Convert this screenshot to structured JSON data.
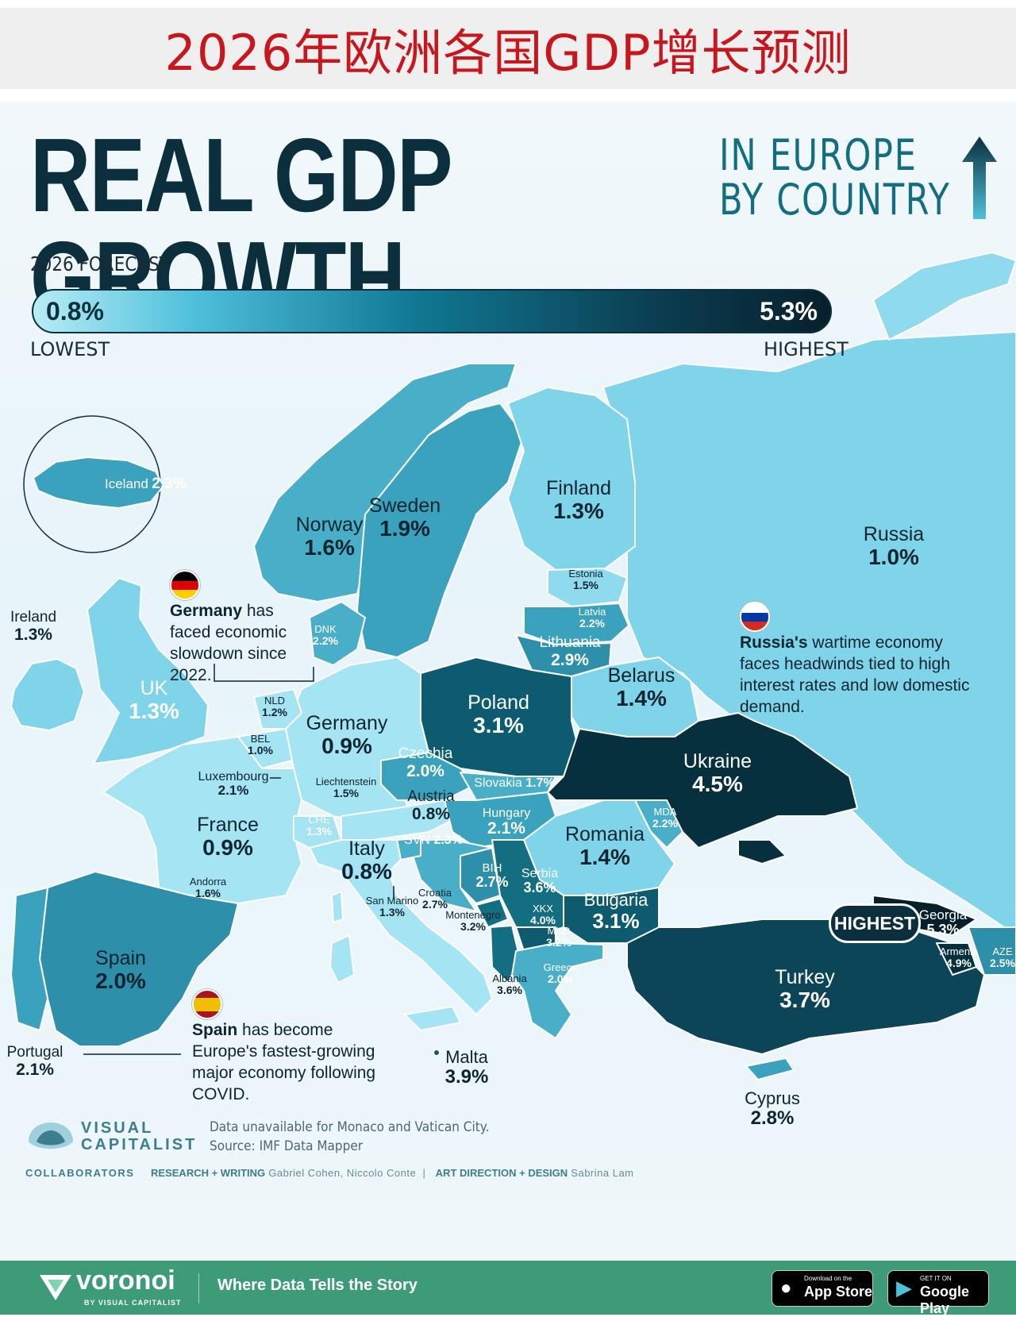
{
  "banner": {
    "title": "2026年欧洲各国GDP增长预测"
  },
  "header": {
    "title": "REAL GDP GROWTH",
    "subtitle_line1": "IN EUROPE",
    "subtitle_line2": "BY COUNTRY"
  },
  "legend": {
    "heading": "2026 FORECAST",
    "low_value": "0.8%",
    "high_value": "5.3%",
    "low_label": "LOWEST",
    "high_label": "HIGHEST",
    "color_low": "#b7ecf6",
    "color_high": "#06202b"
  },
  "countries": {
    "iceland": {
      "name": "Iceland",
      "value": "2.3%"
    },
    "ireland": {
      "name": "Ireland",
      "value": "1.3%"
    },
    "uk": {
      "name": "UK",
      "value": "1.3%"
    },
    "norway": {
      "name": "Norway",
      "value": "1.6%"
    },
    "sweden": {
      "name": "Sweden",
      "value": "1.9%"
    },
    "finland": {
      "name": "Finland",
      "value": "1.3%"
    },
    "russia": {
      "name": "Russia",
      "value": "1.0%"
    },
    "estonia": {
      "name": "Estonia",
      "value": "1.5%"
    },
    "latvia": {
      "name": "Latvia",
      "value": "2.2%"
    },
    "lithuania": {
      "name": "Lithuania",
      "value": "2.9%"
    },
    "denmark": {
      "name": "DNK",
      "value": "2.2%"
    },
    "netherlands": {
      "name": "NLD",
      "value": "1.2%"
    },
    "belgium": {
      "name": "BEL",
      "value": "1.0%"
    },
    "luxembourg": {
      "name": "Luxembourg",
      "value": "2.1%"
    },
    "liechtenstein": {
      "name": "Liechtenstein",
      "value": "1.5%"
    },
    "switzerland": {
      "name": "CHE",
      "value": "1.3%"
    },
    "germany": {
      "name": "Germany",
      "value": "0.9%"
    },
    "poland": {
      "name": "Poland",
      "value": "3.1%"
    },
    "belarus": {
      "name": "Belarus",
      "value": "1.4%"
    },
    "ukraine": {
      "name": "Ukraine",
      "value": "4.5%"
    },
    "czechia": {
      "name": "Czechia",
      "value": "2.0%"
    },
    "slovakia": {
      "name": "Slovakia",
      "value": "1.7%"
    },
    "austria": {
      "name": "Austria",
      "value": "0.8%"
    },
    "hungary": {
      "name": "Hungary",
      "value": "2.1%"
    },
    "moldova": {
      "name": "MDA",
      "value": "2.2%"
    },
    "romania": {
      "name": "Romania",
      "value": "1.4%"
    },
    "france": {
      "name": "France",
      "value": "0.9%"
    },
    "slovenia": {
      "name": "SVN",
      "value": "2.3%"
    },
    "italy": {
      "name": "Italy",
      "value": "0.8%"
    },
    "andorra": {
      "name": "Andorra",
      "value": "1.6%"
    },
    "san_marino": {
      "name": "San Marino",
      "value": "1.3%"
    },
    "croatia": {
      "name": "Croatia",
      "value": "2.7%"
    },
    "bosnia": {
      "name": "BIH",
      "value": "2.7%"
    },
    "serbia": {
      "name": "Serbia",
      "value": "3.6%"
    },
    "kosovo": {
      "name": "XKX",
      "value": "4.0%"
    },
    "montenegro": {
      "name": "Montenegro",
      "value": "3.2%"
    },
    "north_macedonia": {
      "name": "MKD",
      "value": "3.2%"
    },
    "albania": {
      "name": "Albania",
      "value": "3.6%"
    },
    "bulgaria": {
      "name": "Bulgaria",
      "value": "3.1%"
    },
    "greece": {
      "name": "Greece",
      "value": "2.0%"
    },
    "georgia": {
      "name": "Georgia",
      "value": "5.3%"
    },
    "armenia": {
      "name": "Armenia",
      "value": "4.9%"
    },
    "azerbaijan": {
      "name": "AZE",
      "value": "2.5%"
    },
    "turkey": {
      "name": "Turkey",
      "value": "3.7%"
    },
    "spain": {
      "name": "Spain",
      "value": "2.0%"
    },
    "portugal": {
      "name": "Portugal",
      "value": "2.1%"
    },
    "malta": {
      "name": "Malta",
      "value": "3.9%"
    },
    "cyprus": {
      "name": "Cyprus",
      "value": "2.8%"
    }
  },
  "notes": {
    "germany": {
      "bold": "Germany",
      "text": " has faced economic slowdown since 2022."
    },
    "russia": {
      "bold": "Russia's",
      "text": " wartime economy faces headwinds tied to high interest rates and low domestic demand."
    },
    "spain": {
      "bold": "Spain",
      "text": " has become Europe's fastest-growing major economy following COVID."
    }
  },
  "badge": {
    "highest": "HIGHEST"
  },
  "credits": {
    "logo_line1": "VISUAL",
    "logo_line2": "CAPITALIST",
    "data_note": "Data unavailable for Monaco and Vatican City.",
    "source": "Source: IMF Data Mapper",
    "collaborators": "COLLABORATORS",
    "research_label": "RESEARCH + WRITING",
    "research_names": "Gabriel Cohen, Niccolo Conte",
    "art_label": "ART DIRECTION + DESIGN",
    "art_names": "Sabrina Lam"
  },
  "footer": {
    "brand": "voronoi",
    "brand_sub": "BY VISUAL CAPITALIST",
    "tagline": "Where Data Tells the Story",
    "appstore_small": "Download on the",
    "appstore": "App Store",
    "googleplay_small": "GET IT ON",
    "googleplay": "Google Play",
    "color": "#3d9b78"
  }
}
